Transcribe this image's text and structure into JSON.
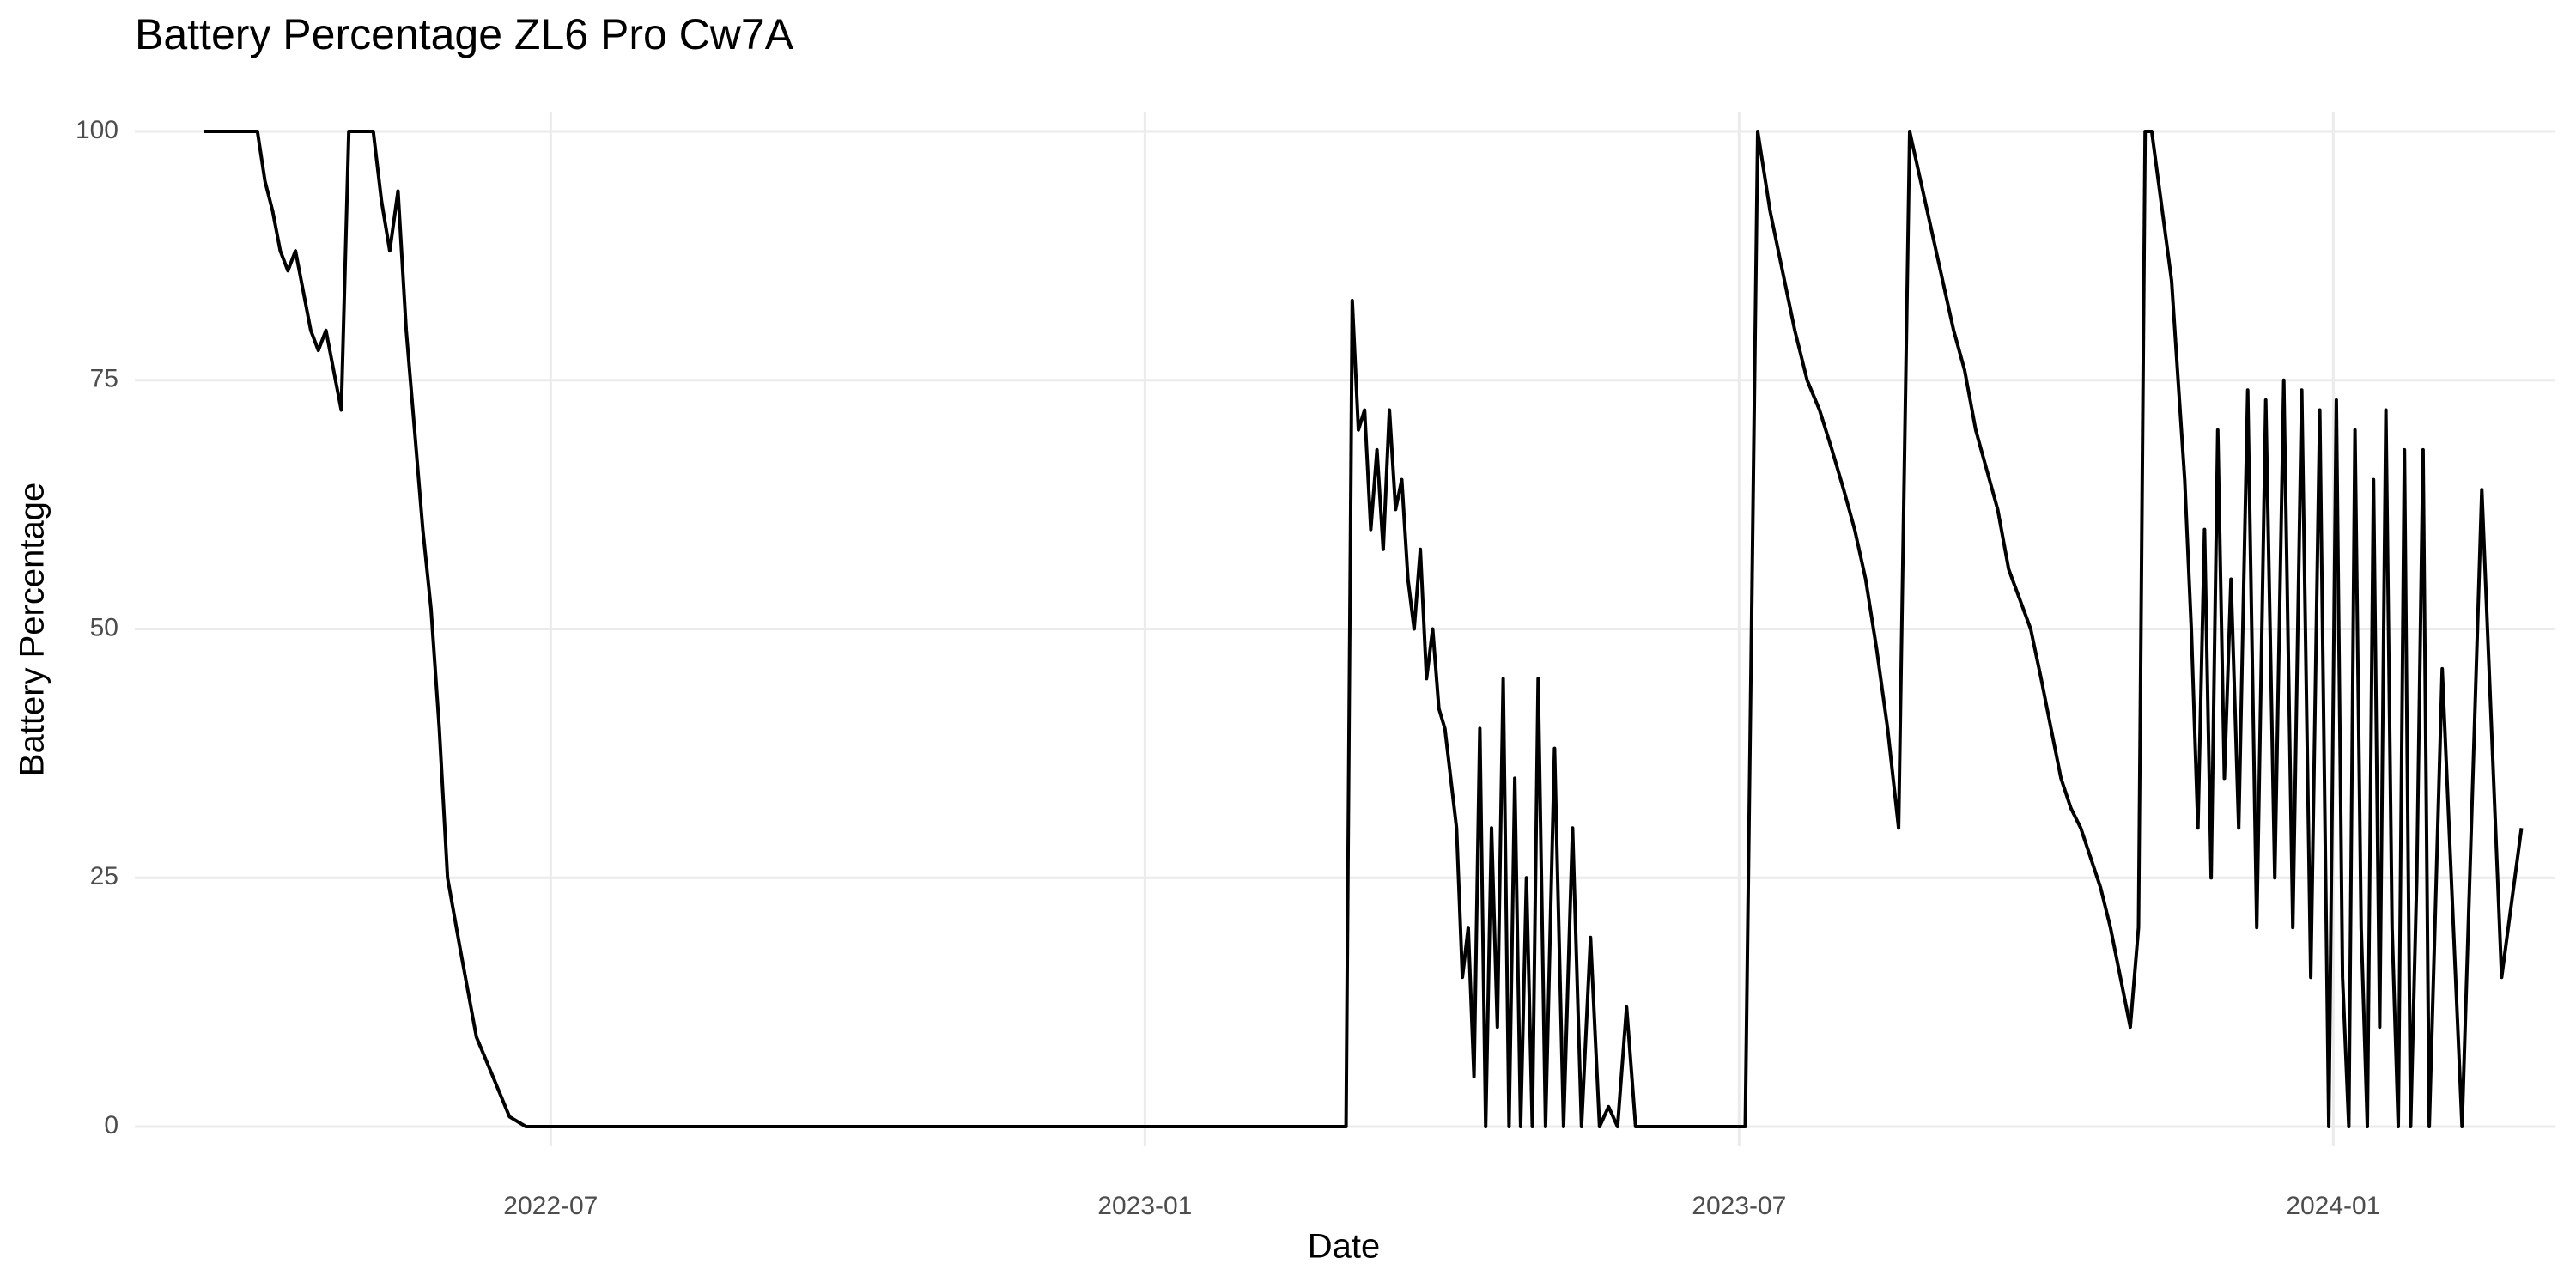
{
  "chart_data": {
    "type": "line",
    "title": "Battery Percentage ZL6 Pro Cw7A",
    "x_label": "Date",
    "y_label": "Battery Percentage",
    "color": "#000000",
    "grid": true,
    "x": [
      "2022-03",
      "2022-04",
      "2022-04",
      "2022-04",
      "2022-04",
      "2022-04",
      "2022-04",
      "2022-04",
      "2022-04",
      "2022-04",
      "2022-04",
      "2022-04",
      "2022-04",
      "2022-04",
      "2022-05",
      "2022-05",
      "2022-05",
      "2022-05",
      "2022-05",
      "2022-05",
      "2022-05",
      "2022-05",
      "2022-05",
      "2022-05",
      "2022-05",
      "2022-05",
      "2022-06",
      "2022-06",
      "2022-06",
      "2022-06",
      "2022-06",
      "2022-06",
      "2022-07",
      "2022-08",
      "2022-09",
      "2022-10",
      "2022-11",
      "2022-12",
      "2023-01",
      "2023-02",
      "2023-03",
      "2023-03",
      "2023-03",
      "2023-03",
      "2023-03",
      "2023-03",
      "2023-03",
      "2023-03",
      "2023-03",
      "2023-03",
      "2023-03",
      "2023-03",
      "2023-03",
      "2023-03",
      "2023-03",
      "2023-03",
      "2023-04",
      "2023-04",
      "2023-04",
      "2023-04",
      "2023-04",
      "2023-04",
      "2023-04",
      "2023-04",
      "2023-04",
      "2023-04",
      "2023-04",
      "2023-04",
      "2023-04",
      "2023-04",
      "2023-04",
      "2023-04",
      "2023-04",
      "2023-05",
      "2023-05",
      "2023-05",
      "2023-05",
      "2023-05",
      "2023-05",
      "2023-05",
      "2023-05",
      "2023-05",
      "2023-05",
      "2023-05",
      "2023-06",
      "2023-06",
      "2023-07",
      "2023-07",
      "2023-07",
      "2023-07",
      "2023-07",
      "2023-07",
      "2023-07",
      "2023-07",
      "2023-08",
      "2023-08",
      "2023-08",
      "2023-08",
      "2023-08",
      "2023-08",
      "2023-08",
      "2023-08",
      "2023-08",
      "2023-09",
      "2023-09",
      "2023-09",
      "2023-09",
      "2023-09",
      "2023-09",
      "2023-09",
      "2023-09",
      "2023-09",
      "2023-10",
      "2023-10",
      "2023-10",
      "2023-10",
      "2023-10",
      "2023-10",
      "2023-10",
      "2023-10",
      "2023-10",
      "2023-10",
      "2023-11",
      "2023-11",
      "2023-11",
      "2023-11",
      "2023-11",
      "2023-11",
      "2023-11",
      "2023-11",
      "2023-11",
      "2023-11",
      "2023-11",
      "2023-11",
      "2023-11",
      "2023-11",
      "2023-11",
      "2023-12",
      "2023-12",
      "2023-12",
      "2023-12",
      "2023-12",
      "2023-12",
      "2023-12",
      "2023-12",
      "2023-12",
      "2023-12",
      "2023-12",
      "2024-01",
      "2024-01",
      "2024-01",
      "2024-01",
      "2024-01",
      "2024-01",
      "2024-01",
      "2024-01",
      "2024-01",
      "2024-01",
      "2024-01",
      "2024-01",
      "2024-01",
      "2024-01",
      "2024-01",
      "2024-01",
      "2024-02",
      "2024-02",
      "2024-02",
      "2024-02",
      "2024-02"
    ],
    "values": [
      100,
      100,
      95,
      92,
      88,
      86,
      88,
      84,
      80,
      78,
      80,
      76,
      72,
      100,
      100,
      100,
      100,
      93,
      88,
      94,
      80,
      70,
      60,
      52,
      40,
      25,
      18,
      9,
      5,
      1,
      0,
      0,
      0,
      0,
      0,
      0,
      0,
      0,
      0,
      0,
      0,
      83,
      70,
      72,
      60,
      68,
      58,
      72,
      62,
      65,
      55,
      50,
      58,
      45,
      50,
      42,
      40,
      35,
      30,
      15,
      20,
      5,
      40,
      0,
      30,
      10,
      45,
      0,
      35,
      0,
      25,
      0,
      45,
      0,
      38,
      0,
      30,
      0,
      19,
      0,
      2,
      0,
      12,
      0,
      0,
      0,
      0,
      100,
      92,
      86,
      80,
      75,
      72,
      68,
      64,
      60,
      55,
      48,
      40,
      30,
      100,
      95,
      90,
      85,
      80,
      76,
      70,
      66,
      62,
      56,
      53,
      50,
      45,
      40,
      35,
      32,
      30,
      27,
      24,
      20,
      15,
      10,
      20,
      100,
      100,
      95,
      90,
      85,
      75,
      65,
      50,
      30,
      60,
      25,
      70,
      35,
      55,
      30,
      74,
      20,
      73,
      25,
      75,
      20,
      74,
      15,
      72,
      0,
      73,
      15,
      0,
      70,
      20,
      0,
      65,
      10,
      72,
      20,
      0,
      68,
      0,
      25,
      68,
      0,
      46,
      0,
      64,
      15,
      30
    ],
    "xlim": [
      "2022-03",
      "2024-03"
    ],
    "xticks": [
      "2022-07",
      "2023-01",
      "2023-07",
      "2024-01"
    ],
    "ylim": [
      0,
      100
    ],
    "yticks": [
      0,
      25,
      50,
      75,
      100
    ]
  }
}
